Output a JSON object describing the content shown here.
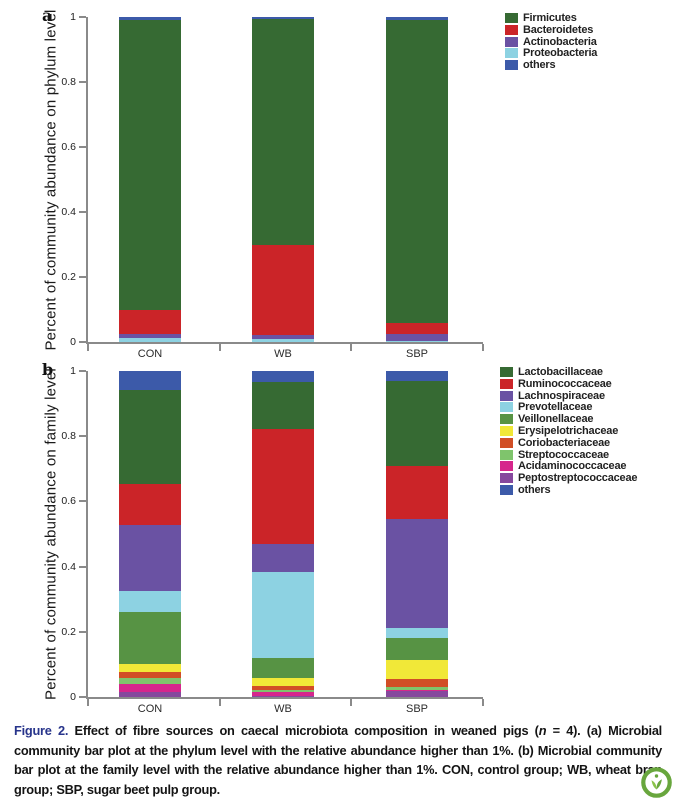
{
  "figure": {
    "panels": [
      {
        "label": "a",
        "y_axis_title": "Percent of community abundance on phylum level",
        "y_ticks": [
          "1",
          "0.8",
          "0.6",
          "0.4",
          "0.2",
          "0"
        ],
        "x_labels": [
          "CON",
          "WB",
          "SBP"
        ]
      },
      {
        "label": "b",
        "y_axis_title": "Percent of community abundance on family level",
        "y_ticks": [
          "1",
          "0.8",
          "0.6",
          "0.4",
          "0.2",
          "0"
        ],
        "x_labels": [
          "CON",
          "WB",
          "SBP"
        ]
      }
    ]
  },
  "chart_data": [
    {
      "type": "bar",
      "stacked": true,
      "title": "Microbial community bar plot at the phylum level",
      "categories": [
        "CON",
        "WB",
        "SBP"
      ],
      "ylabel": "Percent of community abundance on phylum level",
      "ylim": [
        0,
        1
      ],
      "grid": false,
      "legend_position": "top-right",
      "series": [
        {
          "name": "Firmicutes",
          "color": "#366a33",
          "values": [
            0.892,
            0.695,
            0.934
          ]
        },
        {
          "name": "Bacteroidetes",
          "color": "#cb2428",
          "values": [
            0.074,
            0.278,
            0.033
          ]
        },
        {
          "name": "Actinobacteria",
          "color": "#6a52a3",
          "values": [
            0.013,
            0.012,
            0.022
          ]
        },
        {
          "name": "Proteobacteria",
          "color": "#8dd2e2",
          "values": [
            0.011,
            0.01,
            0.003
          ]
        },
        {
          "name": "others",
          "color": "#3c5aa9",
          "values": [
            0.01,
            0.005,
            0.008
          ]
        }
      ],
      "stack_bottom_to_top": [
        "Proteobacteria",
        "Actinobacteria",
        "Bacteroidetes",
        "Firmicutes",
        "others"
      ]
    },
    {
      "type": "bar",
      "stacked": true,
      "title": "Microbial community bar plot at the family level",
      "categories": [
        "CON",
        "WB",
        "SBP"
      ],
      "ylabel": "Percent of community abundance on family level",
      "ylim": [
        0,
        1
      ],
      "grid": false,
      "legend_position": "top-right",
      "series": [
        {
          "name": "Lactobacillaceae",
          "color": "#366a33",
          "values": [
            0.287,
            0.145,
            0.262
          ]
        },
        {
          "name": "Ruminococcaceae",
          "color": "#cb2428",
          "values": [
            0.127,
            0.35,
            0.163
          ]
        },
        {
          "name": "Lachnospiraceae",
          "color": "#6a52a3",
          "values": [
            0.201,
            0.087,
            0.332
          ]
        },
        {
          "name": "Prevotellaceae",
          "color": "#8dd2e2",
          "values": [
            0.064,
            0.265,
            0.031
          ]
        },
        {
          "name": "Veillonellaceae",
          "color": "#579344",
          "values": [
            0.161,
            0.061,
            0.069
          ]
        },
        {
          "name": "Erysipelotrichaceae",
          "color": "#f1e838",
          "values": [
            0.024,
            0.024,
            0.058
          ]
        },
        {
          "name": "Coriobacteriaceae",
          "color": "#d14e26",
          "values": [
            0.019,
            0.013,
            0.025
          ]
        },
        {
          "name": "Streptococcaceae",
          "color": "#7fc46c",
          "values": [
            0.018,
            0.005,
            0.009
          ]
        },
        {
          "name": "Acidaminococcaceae",
          "color": "#d6268c",
          "values": [
            0.025,
            0.012,
            0.004
          ]
        },
        {
          "name": "Peptostreptococcaceae",
          "color": "#86489d",
          "values": [
            0.015,
            0.004,
            0.017
          ]
        },
        {
          "name": "others",
          "color": "#3c5aa9",
          "values": [
            0.059,
            0.034,
            0.03
          ]
        }
      ],
      "stack_bottom_to_top": [
        "Peptostreptococcaceae",
        "Acidaminococcaceae",
        "Streptococcaceae",
        "Coriobacteriaceae",
        "Erysipelotrichaceae",
        "Veillonellaceae",
        "Prevotellaceae",
        "Lachnospiraceae",
        "Ruminococcaceae",
        "Lactobacillaceae",
        "others"
      ]
    }
  ],
  "caption": {
    "label": "Figure 2.",
    "part1": " Effect of fibre sources on caecal microbiota composition in weaned pigs (",
    "n": "n",
    "part2": " = 4). (a) Microbial community bar plot at the phylum level with the relative abundance higher than 1%. (b) Microbial community bar plot at the family level with the relative abundance higher than 1%. CON, control group; WB, wheat bran group; SBP, sugar beet pulp group."
  },
  "colors": {
    "axis": "#8a8a8a",
    "figure_label_blue": "#27348b",
    "badge_green": "#68a63d"
  }
}
